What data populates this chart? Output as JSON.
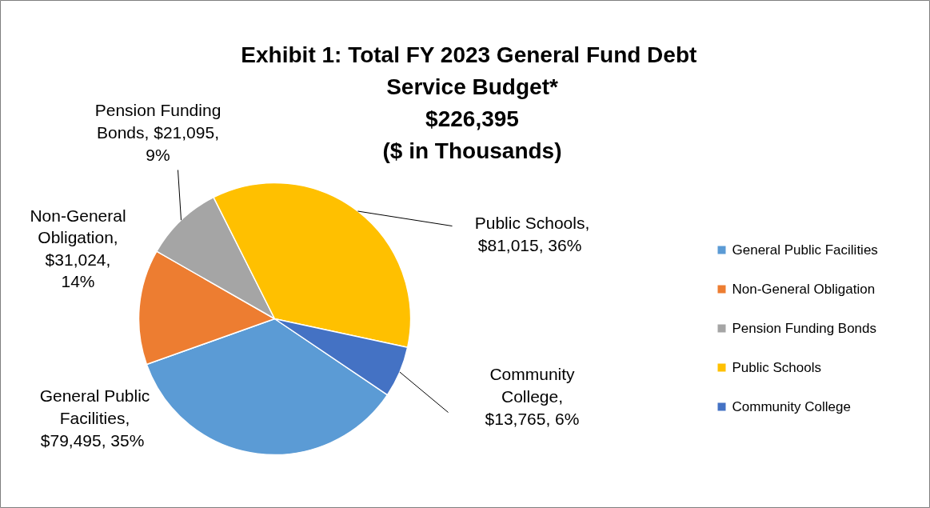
{
  "chart_data": {
    "type": "pie",
    "title": "Exhibit 1:  Total FY 2023 General Fund Debt Service Budget*",
    "subtitle": "$226,395",
    "annotations": [
      "($ in Thousands)"
    ],
    "categories": [
      "General Public Facilities",
      "Non-General Obligation",
      "Pension Funding Bonds",
      "Public Schools",
      "Community College"
    ],
    "values": [
      79495,
      31024,
      21095,
      81015,
      13765
    ],
    "colors": [
      "#5b9bd5",
      "#ed7d31",
      "#a5a5a5",
      "#ffc000",
      "#4472c4"
    ],
    "value_labels": [
      "General Public Facilities, $79,495,  35%",
      "Non-General Obligation, $31,024, 14%",
      "Pension Funding Bonds, $21,095, 9%",
      "Public Schools, $81,015,  36%",
      "Community College, $13,765, 6%"
    ],
    "legend": "right"
  }
}
